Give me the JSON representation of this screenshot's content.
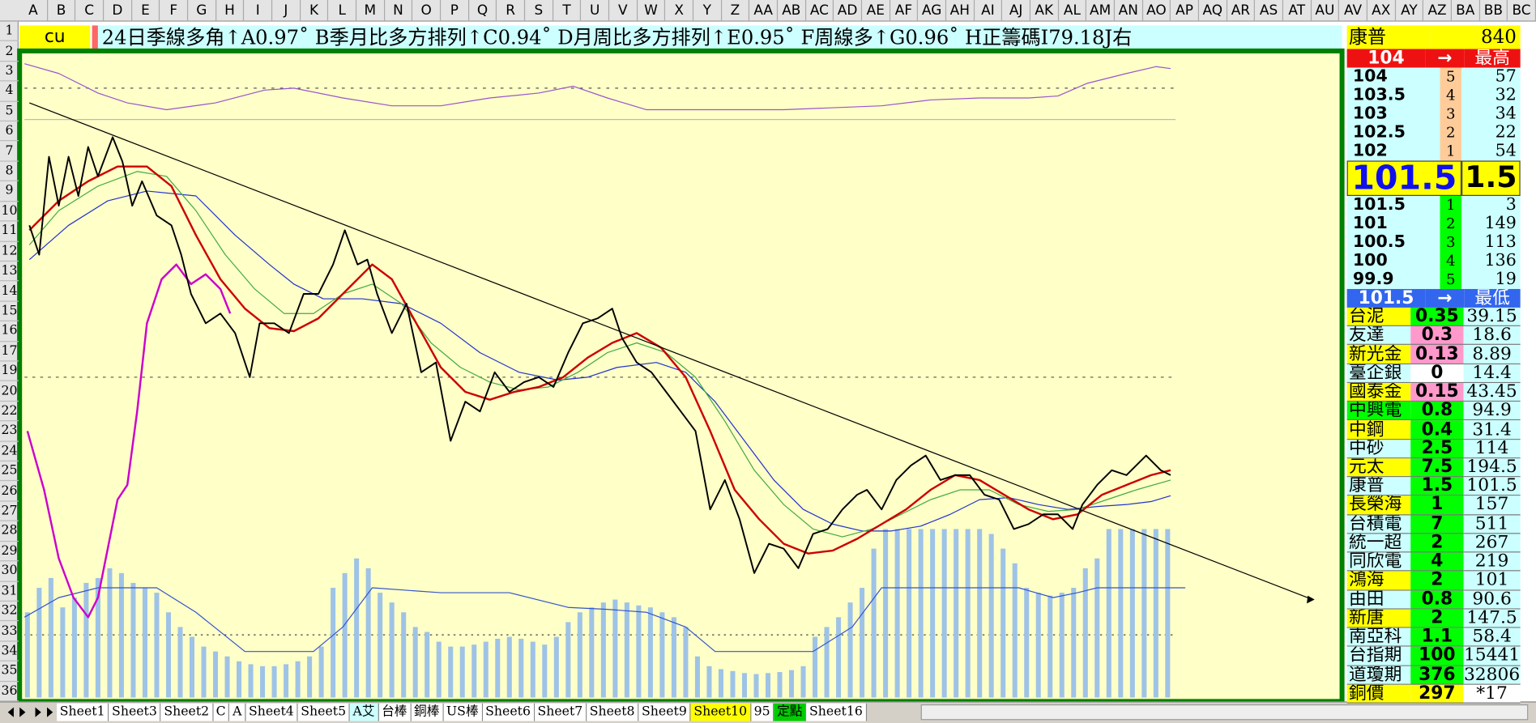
{
  "columns": [
    "A",
    "B",
    "C",
    "D",
    "E",
    "F",
    "G",
    "H",
    "I",
    "J",
    "K",
    "L",
    "M",
    "N",
    "O",
    "P",
    "Q",
    "R",
    "S",
    "T",
    "U",
    "V",
    "W",
    "X",
    "Y",
    "Z",
    "AA",
    "AB",
    "AC",
    "AD",
    "AE",
    "AF",
    "AG",
    "AH",
    "AI",
    "AJ",
    "AK",
    "AL",
    "AM",
    "AN",
    "AO",
    "AP",
    "AQ",
    "AR",
    "AS",
    "AT",
    "AU",
    "AV",
    "AX",
    "AY",
    "AZ",
    "BA",
    "BB",
    "BC"
  ],
  "rows": [
    1,
    2,
    3,
    4,
    5,
    6,
    7,
    8,
    9,
    10,
    11,
    12,
    13,
    14,
    15,
    16,
    17,
    19,
    20,
    22,
    23,
    24,
    25,
    26,
    27,
    28,
    29,
    30,
    31,
    32,
    33,
    34,
    35,
    36
  ],
  "symbol": "cu",
  "ticker": "24日季線多角↑A0.97˚ B季月比多方排列↑C0.94˚ D月周比多方排列↑E0.95˚ F周線多↑G0.96˚ H正籌碼I79.18J右",
  "panel": {
    "header": {
      "name": "康普",
      "value": 840
    },
    "high_row": {
      "price": 104,
      "arrow": "→",
      "label": "最高"
    },
    "asks": [
      [
        104,
        5,
        57
      ],
      [
        103.5,
        4,
        32
      ],
      [
        103,
        3,
        34
      ],
      [
        102.5,
        2,
        22
      ],
      [
        102,
        1,
        54
      ]
    ],
    "last": {
      "price": 101.5,
      "change": 1.5
    },
    "bids": [
      [
        101.5,
        1,
        3
      ],
      [
        101,
        2,
        149
      ],
      [
        100.5,
        3,
        113
      ],
      [
        100,
        4,
        136
      ],
      [
        99.9,
        5,
        19
      ]
    ],
    "low_row": {
      "price": 101.5,
      "arrow": "→",
      "label": "最低"
    },
    "stocks": [
      {
        "name": "台泥",
        "change": 0.35,
        "price": 39.15,
        "colors": [
          "#ffff00",
          "#00ff00",
          "#ccffff"
        ]
      },
      {
        "name": "友達",
        "change": 0.3,
        "price": 18.6,
        "colors": [
          "#ccffff",
          "#ff99cc",
          "#ccffff"
        ]
      },
      {
        "name": "新光金",
        "change": 0.13,
        "price": 8.89,
        "colors": [
          "#ffff00",
          "#ff99cc",
          "#ccffff"
        ]
      },
      {
        "name": "臺企銀",
        "change": 0,
        "price": 14.4,
        "colors": [
          "#ccffff",
          "#ffffff",
          "#ccffff"
        ]
      },
      {
        "name": "國泰金",
        "change": 0.15,
        "price": 43.45,
        "colors": [
          "#ffff00",
          "#ff99cc",
          "#ccffff"
        ]
      },
      {
        "name": "中興電",
        "change": 0.8,
        "price": 94.9,
        "colors": [
          "#00ff00",
          "#00ff00",
          "#ccffff"
        ]
      },
      {
        "name": "中鋼",
        "change": 0.4,
        "price": 31.4,
        "colors": [
          "#ffff00",
          "#00ff00",
          "#ccffff"
        ]
      },
      {
        "name": "中砂",
        "change": 2.5,
        "price": 114,
        "colors": [
          "#ccffff",
          "#00ff00",
          "#ccffff"
        ]
      },
      {
        "name": "元太",
        "change": 7.5,
        "price": 194.5,
        "colors": [
          "#ffff00",
          "#00ff00",
          "#ccffff"
        ]
      },
      {
        "name": "康普",
        "change": 1.5,
        "price": 101.5,
        "colors": [
          "#ccffff",
          "#00ff00",
          "#ccffff"
        ]
      },
      {
        "name": "長榮海",
        "change": 1,
        "price": 157,
        "colors": [
          "#ffff00",
          "#00ff00",
          "#ccffff"
        ]
      },
      {
        "name": "台積電",
        "change": 7,
        "price": 511,
        "colors": [
          "#ccffff",
          "#00ff00",
          "#ccffff"
        ]
      },
      {
        "name": "統一超",
        "change": 2,
        "price": 267,
        "colors": [
          "#ccffff",
          "#00ff00",
          "#ccffff"
        ]
      },
      {
        "name": "同欣電",
        "change": 4,
        "price": 219,
        "colors": [
          "#ccffff",
          "#00ff00",
          "#ccffff"
        ]
      },
      {
        "name": "鴻海",
        "change": 2,
        "price": 101,
        "colors": [
          "#ffff00",
          "#00ff00",
          "#ccffff"
        ]
      },
      {
        "name": "由田",
        "change": 0.8,
        "price": 90.6,
        "colors": [
          "#ccffff",
          "#00ff00",
          "#ccffff"
        ]
      },
      {
        "name": "新唐",
        "change": 2,
        "price": 147.5,
        "colors": [
          "#ffff00",
          "#00ff00",
          "#ccffff"
        ]
      },
      {
        "name": "南亞科",
        "change": 1.1,
        "price": 58.4,
        "colors": [
          "#ccffff",
          "#00ff00",
          "#ccffff"
        ]
      },
      {
        "name": "台指期",
        "change": 100,
        "price": 15441,
        "colors": [
          "#ccffff",
          "#00ff00",
          "#ccffff"
        ]
      },
      {
        "name": "道瓊期",
        "change": 376,
        "price": 32806,
        "colors": [
          "#ccffff",
          "#00ff00",
          "#ccffff"
        ]
      },
      {
        "name": "銅價",
        "change": 297,
        "price": "*17",
        "colors": [
          "#ffff00",
          "#ffff00",
          "#ffffff"
        ]
      }
    ]
  },
  "tabs": [
    {
      "name": "Sheet1"
    },
    {
      "name": "Sheet3"
    },
    {
      "name": "Sheet2"
    },
    {
      "name": "C"
    },
    {
      "name": "A"
    },
    {
      "name": "Sheet4"
    },
    {
      "name": "Sheet5"
    },
    {
      "name": "A艾",
      "color": "#ccffff"
    },
    {
      "name": "台棒"
    },
    {
      "name": "銅棒"
    },
    {
      "name": "US棒"
    },
    {
      "name": "Sheet6"
    },
    {
      "name": "Sheet7"
    },
    {
      "name": "Sheet8"
    },
    {
      "name": "Sheet9"
    },
    {
      "name": "Sheet10",
      "color": "#ffff00"
    },
    {
      "name": "95"
    },
    {
      "name": "定點",
      "color": "#00cc00"
    },
    {
      "name": "Sheet16"
    }
  ],
  "chart_data": {
    "type": "line",
    "xlim": [
      25,
      1365
    ],
    "ylim": [
      0,
      654
    ],
    "series": [
      {
        "type": "bar",
        "color": "#9ec3e6",
        "values": [
          87,
          112,
          122,
          92,
          102,
          117,
          122,
          132,
          127,
          117,
          112,
          107,
          87,
          72,
          62,
          52,
          47,
          42,
          37,
          34,
          32,
          32,
          34,
          37,
          42,
          52,
          112,
          127,
          142,
          132,
          107,
          97,
          87,
          72,
          67,
          57,
          52,
          52,
          54,
          57,
          60,
          62,
          60,
          57,
          54,
          62,
          77,
          87,
          92,
          97,
          100,
          97,
          94,
          92,
          87,
          82,
          72,
          42,
          32,
          29,
          27,
          25,
          24,
          25,
          26,
          28,
          32,
          62,
          72,
          82,
          97,
          112,
          152,
          172,
          172,
          172,
          172,
          172,
          172,
          172,
          172,
          172,
          167,
          152,
          137,
          112,
          107,
          104,
          107,
          112,
          132,
          142,
          172,
          172,
          172,
          172,
          172,
          172
        ]
      },
      {
        "type": "line",
        "color": "#3355cc",
        "width": 1,
        "x": [
          25,
          60,
          100,
          160,
          200,
          250,
          320,
          350,
          380,
          450,
          520,
          580,
          620,
          660,
          700,
          730,
          830,
          870,
          900,
          1040,
          1075,
          1100,
          1120,
          1210
        ],
        "values": [
          82,
          102,
          112,
          112,
          87,
          47,
          47,
          72,
          112,
          107,
          107,
          92,
          90,
          87,
          72,
          47,
          47,
          72,
          112,
          112,
          102,
          107,
          112,
          112
        ]
      },
      {
        "type": "line",
        "color": "#9955cc",
        "width": 1,
        "x": [
          25,
          60,
          100,
          130,
          170,
          220,
          270,
          300,
          350,
          400,
          450,
          500,
          550,
          585,
          620,
          660,
          700,
          800,
          900,
          950,
          1000,
          1050,
          1080,
          1110,
          1150,
          1180,
          1195
        ],
        "values": [
          647,
          637,
          617,
          607,
          600,
          607,
          620,
          622,
          612,
          604,
          604,
          612,
          617,
          624,
          612,
          600,
          600,
          600,
          604,
          610,
          612,
          612,
          614,
          627,
          637,
          644,
          642
        ]
      },
      {
        "type": "line",
        "color": "#cc00cc",
        "width": 2,
        "x": [
          28,
          45,
          60,
          75,
          90,
          100,
          110,
          120,
          130,
          140,
          150,
          165,
          180,
          195,
          210,
          225,
          235
        ],
        "values": [
          272,
          212,
          142,
          102,
          82,
          102,
          152,
          202,
          217,
          292,
          382,
          427,
          442,
          422,
          432,
          417,
          392
        ]
      },
      {
        "type": "line",
        "color": "#2233cc",
        "width": 1,
        "x": [
          30,
          70,
          110,
          150,
          200,
          240,
          275,
          300,
          330,
          370,
          410,
          450,
          490,
          530,
          570,
          600,
          630,
          670,
          700,
          730,
          760,
          790,
          820,
          850,
          880,
          910,
          940,
          970,
          1000,
          1030,
          1060,
          1090,
          1120,
          1150,
          1175,
          1195
        ],
        "values": [
          447,
          482,
          507,
          517,
          512,
          472,
          442,
          422,
          407,
          407,
          402,
          382,
          352,
          332,
          324,
          327,
          337,
          342,
          332,
          302,
          262,
          222,
          192,
          177,
          170,
          170,
          175,
          187,
          202,
          204,
          197,
          192,
          195,
          197,
          200,
          206
        ]
      },
      {
        "type": "line",
        "color": "#44aa44",
        "width": 1,
        "x": [
          30,
          60,
          100,
          140,
          170,
          200,
          230,
          260,
          290,
          320,
          350,
          380,
          410,
          440,
          470,
          500,
          530,
          560,
          590,
          620,
          650,
          680,
          710,
          740,
          770,
          800,
          830,
          860,
          890,
          920,
          950,
          980,
          1010,
          1040,
          1070,
          1100,
          1130,
          1160,
          1195
        ],
        "values": [
          462,
          497,
          522,
          537,
          532,
          497,
          452,
          417,
          392,
          392,
          412,
          422,
          402,
          362,
          337,
          322,
          314,
          317,
          332,
          352,
          362,
          352,
          327,
          282,
          232,
          197,
          172,
          164,
          172,
          187,
          202,
          212,
          212,
          197,
          190,
          192,
          202,
          212,
          222
        ]
      },
      {
        "type": "line",
        "color": "#cc0000",
        "width": 2,
        "x": [
          30,
          60,
          90,
          120,
          150,
          175,
          200,
          225,
          250,
          275,
          300,
          325,
          350,
          380,
          400,
          425,
          450,
          475,
          500,
          525,
          550,
          575,
          600,
          625,
          650,
          675,
          700,
          725,
          750,
          775,
          800,
          825,
          850,
          875,
          900,
          925,
          950,
          975,
          1000,
          1025,
          1050,
          1075,
          1100,
          1125,
          1150,
          1175,
          1195
        ],
        "values": [
          477,
          507,
          527,
          542,
          542,
          522,
          472,
          427,
          397,
          377,
          374,
          387,
          412,
          442,
          427,
          382,
          337,
          312,
          304,
          312,
          317,
          327,
          347,
          362,
          372,
          357,
          327,
          272,
          212,
          182,
          157,
          147,
          150,
          162,
          177,
          192,
          212,
          227,
          222,
          207,
          192,
          182,
          187,
          207,
          217,
          227,
          232
        ]
      },
      {
        "type": "line",
        "color": "#000000",
        "width": 1.6,
        "x": [
          30,
          40,
          50,
          60,
          70,
          80,
          90,
          100,
          115,
          125,
          135,
          145,
          160,
          175,
          185,
          195,
          210,
          225,
          240,
          255,
          265,
          280,
          295,
          310,
          325,
          340,
          352,
          365,
          375,
          385,
          400,
          415,
          430,
          445,
          460,
          475,
          490,
          505,
          520,
          535,
          550,
          565,
          580,
          595,
          610,
          625,
          635,
          650,
          665,
          680,
          695,
          710,
          725,
          740,
          755,
          770,
          785,
          800,
          815,
          830,
          845,
          860,
          875,
          885,
          900,
          915,
          930,
          945,
          960,
          975,
          990,
          1005,
          1020,
          1035,
          1050,
          1065,
          1080,
          1095,
          1105,
          1120,
          1135,
          1150,
          1170,
          1185,
          1195
        ],
        "values": [
          482,
          452,
          552,
          502,
          552,
          512,
          562,
          532,
          572,
          547,
          502,
          527,
          492,
          482,
          452,
          412,
          382,
          392,
          372,
          327,
          382,
          382,
          372,
          412,
          412,
          442,
          477,
          442,
          447,
          412,
          372,
          402,
          332,
          342,
          262,
          302,
          292,
          332,
          312,
          322,
          327,
          317,
          352,
          382,
          387,
          397,
          367,
          342,
          332,
          312,
          292,
          272,
          192,
          222,
          182,
          127,
          157,
          152,
          132,
          167,
          172,
          192,
          207,
          212,
          192,
          222,
          237,
          247,
          222,
          227,
          227,
          207,
          202,
          172,
          177,
          187,
          187,
          172,
          197,
          217,
          232,
          227,
          247,
          232,
          227
        ]
      },
      {
        "type": "line",
        "color": "#000000",
        "width": 1,
        "x": [
          30,
          1340
        ],
        "values": [
          607,
          100
        ]
      }
    ]
  }
}
